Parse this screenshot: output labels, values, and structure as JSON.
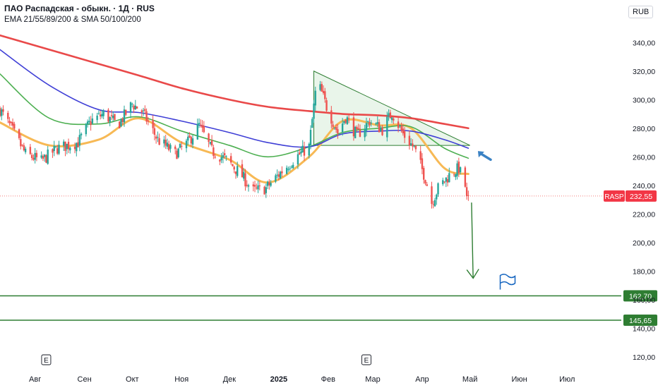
{
  "header": {
    "title": "ПАО Распадская - обыкн. · 1Д · RUS",
    "indicators": "EMA 21/55/89/200 & SMA 50/100/200",
    "currency": "RUB"
  },
  "colors": {
    "up": "#26a69a",
    "down": "#ef5350",
    "ema21": "#f7b955",
    "ema55": "#4caf50",
    "ema89": "#3f3fd6",
    "ema200": "#e94949",
    "pattern": "#2e7d32",
    "level": "#2e7d32",
    "arrow_blue": "#3b82c4",
    "flag": "#1565c0"
  },
  "chart_data": {
    "type": "candlestick",
    "ticker": "RASP",
    "last_price": "232,55",
    "ylim": [
      113,
      350
    ],
    "y_ticks": [
      "340,00",
      "320,00",
      "300,00",
      "280,00",
      "260,00",
      "240,00",
      "220,00",
      "200,00",
      "180,00",
      "160,00",
      "140,00",
      "120,00"
    ],
    "y_tick_values": [
      340,
      320,
      300,
      280,
      260,
      240,
      220,
      200,
      180,
      160,
      140,
      120
    ],
    "x_labels": [
      "Авг",
      "Сен",
      "Окт",
      "Ноя",
      "Дек",
      "2025",
      "Фев",
      "Мар",
      "Апр",
      "Май",
      "Июн",
      "Июл"
    ],
    "x_label_dates": [
      "2024-08-01",
      "2024-09-01",
      "2024-10-01",
      "2024-11-01",
      "2024-12-01",
      "2025-01-01",
      "2025-02-01",
      "2025-03-01",
      "2025-04-01",
      "2025-05-01",
      "2025-06-01",
      "2025-07-01"
    ],
    "x_range": [
      "2024-07-10",
      "2025-08-04"
    ],
    "last_candle_date": "2025-04-30",
    "event_markers": [
      {
        "label": "E",
        "date": "2024-08-08"
      },
      {
        "label": "E",
        "date": "2025-02-25"
      }
    ],
    "horizontal_levels": [
      {
        "value": 162.7,
        "label": "162,70"
      },
      {
        "value": 145.65,
        "label": "145,65"
      }
    ],
    "price_anchors": [
      {
        "date": "2024-07-10",
        "close": 293
      },
      {
        "date": "2024-07-18",
        "close": 278
      },
      {
        "date": "2024-07-26",
        "close": 262
      },
      {
        "date": "2024-08-05",
        "close": 257
      },
      {
        "date": "2024-08-15",
        "close": 266
      },
      {
        "date": "2024-08-28",
        "close": 270
      },
      {
        "date": "2024-09-05",
        "close": 285
      },
      {
        "date": "2024-09-13",
        "close": 290
      },
      {
        "date": "2024-09-22",
        "close": 282
      },
      {
        "date": "2024-10-01",
        "close": 297
      },
      {
        "date": "2024-10-07",
        "close": 292
      },
      {
        "date": "2024-10-17",
        "close": 272
      },
      {
        "date": "2024-10-28",
        "close": 262
      },
      {
        "date": "2024-11-05",
        "close": 270
      },
      {
        "date": "2024-11-12",
        "close": 282
      },
      {
        "date": "2024-11-20",
        "close": 264
      },
      {
        "date": "2024-11-29",
        "close": 258
      },
      {
        "date": "2024-12-08",
        "close": 248
      },
      {
        "date": "2024-12-16",
        "close": 236
      },
      {
        "date": "2024-12-24",
        "close": 238
      },
      {
        "date": "2025-01-03",
        "close": 250
      },
      {
        "date": "2025-01-12",
        "close": 260
      },
      {
        "date": "2025-01-20",
        "close": 267
      },
      {
        "date": "2025-01-25",
        "close": 314
      },
      {
        "date": "2025-01-31",
        "close": 295
      },
      {
        "date": "2025-02-07",
        "close": 277
      },
      {
        "date": "2025-02-12",
        "close": 288
      },
      {
        "date": "2025-02-19",
        "close": 275
      },
      {
        "date": "2025-02-27",
        "close": 285
      },
      {
        "date": "2025-03-07",
        "close": 279
      },
      {
        "date": "2025-03-13",
        "close": 291
      },
      {
        "date": "2025-03-20",
        "close": 276
      },
      {
        "date": "2025-03-27",
        "close": 266
      },
      {
        "date": "2025-04-03",
        "close": 245
      },
      {
        "date": "2025-04-07",
        "close": 228
      },
      {
        "date": "2025-04-11",
        "close": 238
      },
      {
        "date": "2025-04-18",
        "close": 247
      },
      {
        "date": "2025-04-24",
        "close": 252
      },
      {
        "date": "2025-04-30",
        "close": 232.55
      }
    ],
    "moving_averages": [
      {
        "name": "EMA 21",
        "color_key": "ema21",
        "points": [
          [
            "2024-07-10",
            284
          ],
          [
            "2024-08-10",
            268
          ],
          [
            "2024-09-10",
            272
          ],
          [
            "2024-10-05",
            287
          ],
          [
            "2024-11-01",
            270
          ],
          [
            "2024-12-01",
            258
          ],
          [
            "2024-12-25",
            242
          ],
          [
            "2025-01-20",
            260
          ],
          [
            "2025-02-10",
            285
          ],
          [
            "2025-03-05",
            282
          ],
          [
            "2025-03-25",
            280
          ],
          [
            "2025-04-15",
            252
          ],
          [
            "2025-04-30",
            248
          ]
        ]
      },
      {
        "name": "EMA 55",
        "color_key": "ema55",
        "points": [
          [
            "2024-07-10",
            318
          ],
          [
            "2024-08-10",
            287
          ],
          [
            "2024-09-10",
            283
          ],
          [
            "2024-10-05",
            288
          ],
          [
            "2024-11-01",
            278
          ],
          [
            "2024-12-01",
            268
          ],
          [
            "2024-12-25",
            260
          ],
          [
            "2025-01-20",
            267
          ],
          [
            "2025-02-10",
            277
          ],
          [
            "2025-03-05",
            280
          ],
          [
            "2025-03-25",
            281
          ],
          [
            "2025-04-15",
            266
          ],
          [
            "2025-04-30",
            259
          ]
        ]
      },
      {
        "name": "EMA 89",
        "color_key": "ema89",
        "points": [
          [
            "2024-07-10",
            335
          ],
          [
            "2024-08-10",
            310
          ],
          [
            "2024-09-10",
            293
          ],
          [
            "2024-10-05",
            291
          ],
          [
            "2024-11-01",
            285
          ],
          [
            "2024-12-01",
            277
          ],
          [
            "2024-12-25",
            270
          ],
          [
            "2025-01-20",
            267
          ],
          [
            "2025-02-10",
            276
          ],
          [
            "2025-03-05",
            278
          ],
          [
            "2025-03-25",
            278
          ],
          [
            "2025-04-15",
            272
          ],
          [
            "2025-04-30",
            266
          ]
        ]
      },
      {
        "name": "EMA 200",
        "color_key": "ema200",
        "points": [
          [
            "2024-07-10",
            345
          ],
          [
            "2024-08-10",
            335
          ],
          [
            "2024-09-10",
            325
          ],
          [
            "2024-10-05",
            317
          ],
          [
            "2024-11-01",
            308
          ],
          [
            "2024-12-01",
            300
          ],
          [
            "2024-12-25",
            295
          ],
          [
            "2025-01-20",
            292
          ],
          [
            "2025-02-10",
            290
          ],
          [
            "2025-03-05",
            289
          ],
          [
            "2025-03-25",
            287
          ],
          [
            "2025-04-15",
            283
          ],
          [
            "2025-04-30",
            280
          ]
        ]
      }
    ],
    "triangle": {
      "apex_high": [
        "2025-01-23",
        320
      ],
      "apex_low": [
        "2025-01-23",
        268
      ],
      "right": [
        "2025-05-01",
        268
      ],
      "upper_right": [
        "2025-05-01",
        268
      ]
    },
    "projection_arrow": {
      "from": [
        "2025-05-02",
        228
      ],
      "to": [
        "2025-05-03",
        175
      ]
    },
    "retest_arrow": {
      "from": [
        "2025-05-14",
        258
      ],
      "to": [
        "2025-05-06",
        264
      ]
    }
  }
}
